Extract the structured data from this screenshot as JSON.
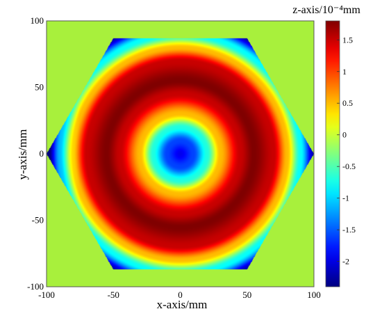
{
  "chart_data": {
    "type": "heatmap",
    "title": "",
    "xlabel": "x-axis/mm",
    "ylabel": "y-axis/mm",
    "xlim": [
      -100,
      100
    ],
    "ylim": [
      -100,
      100
    ],
    "x_ticks": [
      "-100",
      "-50",
      "0",
      "50",
      "100"
    ],
    "y_ticks": [
      "100",
      "50",
      "0",
      "-50",
      "-100"
    ],
    "x_tick_values": [
      -100,
      -50,
      0,
      50,
      100
    ],
    "y_tick_values": [
      100,
      50,
      0,
      -50,
      -100
    ],
    "grid": false,
    "colorbar": {
      "label": "z-axis/10⁻⁴mm",
      "range": [
        -2.4,
        1.8
      ],
      "ticks": [
        "1.5",
        "1",
        "0.5",
        "0",
        "-0.5",
        "-1",
        "-1.5",
        "-2"
      ],
      "tick_values": [
        1.5,
        1,
        0.5,
        0,
        -0.5,
        -1,
        -1.5,
        -2
      ],
      "colormap": "jet"
    },
    "background_value": 0,
    "mask_shape": "hexagon",
    "hexagon_vertices": [
      [
        -100,
        0
      ],
      [
        -50,
        87
      ],
      [
        50,
        87
      ],
      [
        100,
        0
      ],
      [
        50,
        -87
      ],
      [
        -50,
        -87
      ]
    ],
    "surface_radial_profile": [
      {
        "r": 0,
        "z": -1.95
      },
      {
        "r": 10,
        "z": -1.6
      },
      {
        "r": 20,
        "z": -0.7
      },
      {
        "r": 30,
        "z": 0.5
      },
      {
        "r": 45,
        "z": 1.5
      },
      {
        "r": 55,
        "z": 1.8
      },
      {
        "r": 70,
        "z": 1.5
      },
      {
        "r": 80,
        "z": 0.5
      },
      {
        "r": 90,
        "z": -0.8
      },
      {
        "r": 100,
        "z": -2.2
      }
    ],
    "colors": {
      "background": "#a8f03c",
      "colormap_stops": [
        "#00008f",
        "#0000ff",
        "#00ffff",
        "#ffff00",
        "#ff0000",
        "#800000"
      ]
    }
  }
}
